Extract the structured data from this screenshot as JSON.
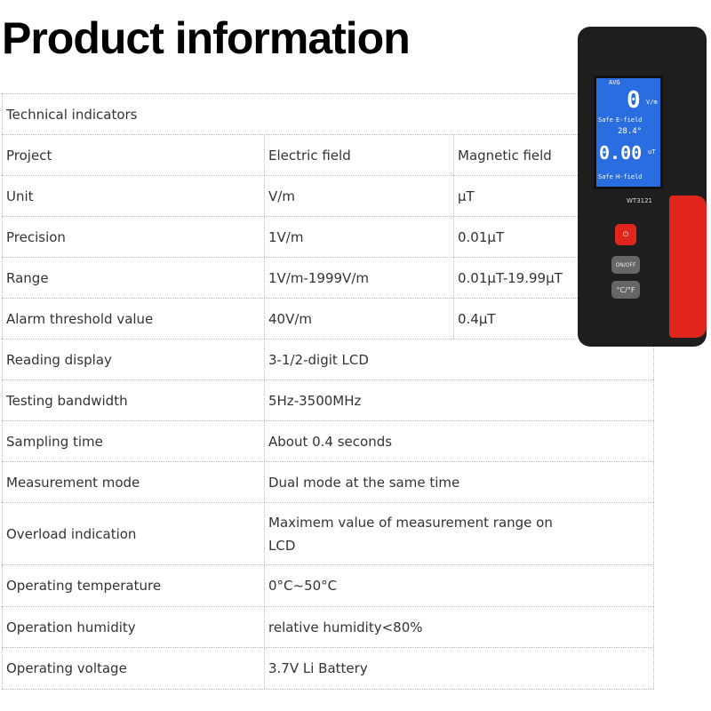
{
  "title": "Product information",
  "table": {
    "header": "Technical indicators",
    "rows": [
      {
        "label": "Project",
        "electric": "Electric field",
        "magnetic": "Magnetic field"
      },
      {
        "label": "Unit",
        "electric": "V/m",
        "magnetic": "μT"
      },
      {
        "label": "Precision",
        "electric": "1V/m",
        "magnetic": "0.01μT"
      },
      {
        "label": "Range",
        "electric": "1V/m-1999V/m",
        "magnetic": "0.01μT-19.99μT"
      },
      {
        "label": "Alarm threshold value",
        "electric": "40V/m",
        "magnetic": "0.4μT"
      }
    ],
    "merged_rows": [
      {
        "label": "Reading display",
        "value": "3-1/2-digit LCD"
      },
      {
        "label": "Testing bandwidth",
        "value": "5Hz-3500MHz"
      },
      {
        "label": "Sampling time",
        "value": "About 0.4 seconds"
      },
      {
        "label": "Measurement mode",
        "value": "Dual mode at the same time"
      },
      {
        "label": "Overload indication",
        "value": "Maximem value of measurement range on LCD"
      },
      {
        "label": "Operating temperature",
        "value": " 0°C~50°C"
      },
      {
        "label": "Operation humidity",
        "value": "relative humidity<80%"
      },
      {
        "label": "Operating voltage",
        "value": "3.7V Li Battery"
      }
    ]
  },
  "device": {
    "model": "WT3121",
    "screen": {
      "avg": "AVG",
      "efield_value": "0",
      "efield_unit": "V/m",
      "safe1": "Safe",
      "efield": "E-field",
      "temp": "28.4°",
      "hfield_value": "0.00",
      "hfield_unit": "uT",
      "safe2": "Safe",
      "hfield": "H-field"
    },
    "buttons": {
      "power": "⏻",
      "sound": "ON/OFF",
      "unit": "°C/°F"
    },
    "colors": {
      "body": "#1e1e1e",
      "accent": "#e0261c",
      "screen": "#2a6de0"
    }
  }
}
